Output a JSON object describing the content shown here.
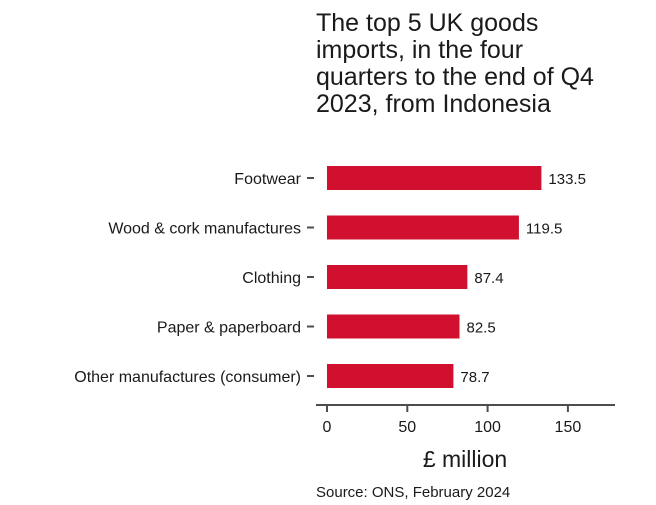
{
  "title_lines": [
    "The top 5 UK goods",
    "imports, in the four",
    "quarters to the end of Q4",
    "2023, from Indonesia"
  ],
  "source": "Source: ONS, February 2024",
  "colors": {
    "bar": "#d0102e",
    "text": "#1a1a1a",
    "axis": "#4d4d4d"
  },
  "chart_data": {
    "type": "bar",
    "orientation": "horizontal",
    "categories": [
      "Footwear",
      "Wood & cork manufactures",
      "Clothing",
      "Paper & paperboard",
      "Other manufactures (consumer)"
    ],
    "values": [
      133.5,
      119.5,
      87.4,
      82.5,
      78.7
    ],
    "data_labels": [
      "133.5",
      "119.5",
      "87.4",
      "82.5",
      "78.7"
    ],
    "xlabel": "£ million",
    "ylabel": "",
    "xlim": [
      0,
      180
    ],
    "xticks": [
      0,
      50,
      100,
      150
    ],
    "grid": false,
    "legend": "none"
  }
}
